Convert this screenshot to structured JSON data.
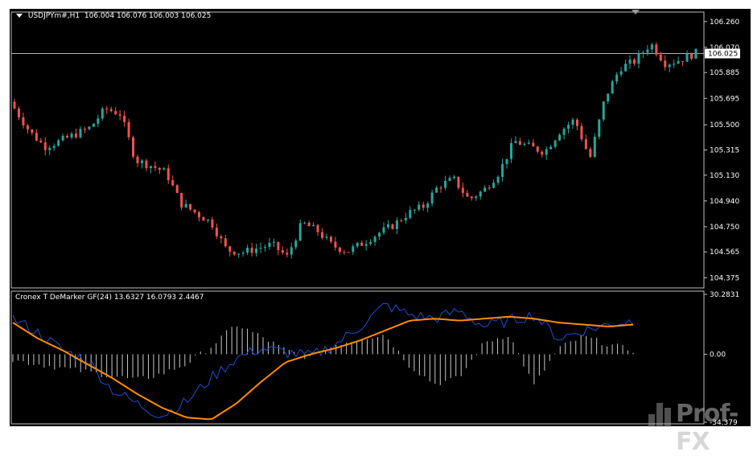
{
  "header": {
    "symbol": "USDJPYm#,H1",
    "ohlc": "106.004 106.076 106.003 106.025"
  },
  "indicator": {
    "title": "Cronex T DeMarker GF(24) 13.6327 16.0793 2.4467"
  },
  "current_price_label": "106.025",
  "watermark": "Prof-FX",
  "colors": {
    "background": "#000000",
    "bull": "#26a69a",
    "bear": "#ef5350",
    "grid_axis": "#c0c0c0",
    "orange_line": "#ff8c00",
    "blue_line": "#1f4fd6",
    "histogram": "#c8c8c8",
    "price_line": "#b0b0b0"
  },
  "chart_data": [
    {
      "type": "candlestick",
      "title": "USDJPYm#,H1",
      "ylim": [
        104.3,
        106.33
      ],
      "y_ticks": [
        "106.260",
        "106.070",
        "105.885",
        "105.695",
        "105.500",
        "105.315",
        "105.130",
        "104.940",
        "104.750",
        "104.565",
        "104.375"
      ],
      "current_price": 106.025,
      "close_path": [
        105.62,
        105.45,
        105.34,
        105.38,
        105.43,
        105.48,
        105.62,
        105.58,
        105.24,
        105.2,
        105.15,
        104.92,
        104.85,
        104.78,
        104.58,
        104.56,
        104.59,
        104.62,
        104.53,
        104.78,
        104.72,
        104.61,
        104.57,
        104.63,
        104.7,
        104.76,
        104.85,
        104.9,
        105.05,
        105.1,
        104.95,
        105.02,
        105.15,
        105.38,
        105.34,
        105.3,
        105.45,
        105.54,
        105.25,
        105.7,
        105.92,
        105.97,
        106.1,
        105.95,
        105.98,
        106.03
      ]
    },
    {
      "type": "line",
      "title": "Cronex T DeMarker GF(24)",
      "ylim": [
        -34.379,
        30.2831
      ],
      "y_ticks": [
        "30.2831",
        "0.00",
        "-34.379"
      ],
      "series": [
        {
          "values": [
            16,
            8,
            2,
            -5,
            -12,
            -20,
            -27,
            -32,
            -33,
            -25,
            -14,
            -4,
            0,
            3,
            7,
            12,
            17,
            18,
            17,
            18,
            19,
            18,
            16,
            15,
            14,
            15
          ]
        },
        {
          "values": [
            18,
            11,
            2,
            -3,
            -18,
            -25,
            -31,
            -24,
            -12,
            -2,
            3,
            1,
            -1,
            5,
            14,
            25,
            20,
            18,
            22,
            14,
            17,
            20,
            8,
            12,
            15,
            17
          ]
        },
        {
          "values": [
            -3,
            -5,
            -7,
            -9,
            -11,
            -13,
            -10,
            -5,
            4,
            15,
            9,
            2,
            -2,
            5,
            8,
            10,
            -6,
            -15,
            -12,
            6,
            10,
            -16,
            3,
            9,
            5,
            2
          ]
        }
      ]
    }
  ]
}
